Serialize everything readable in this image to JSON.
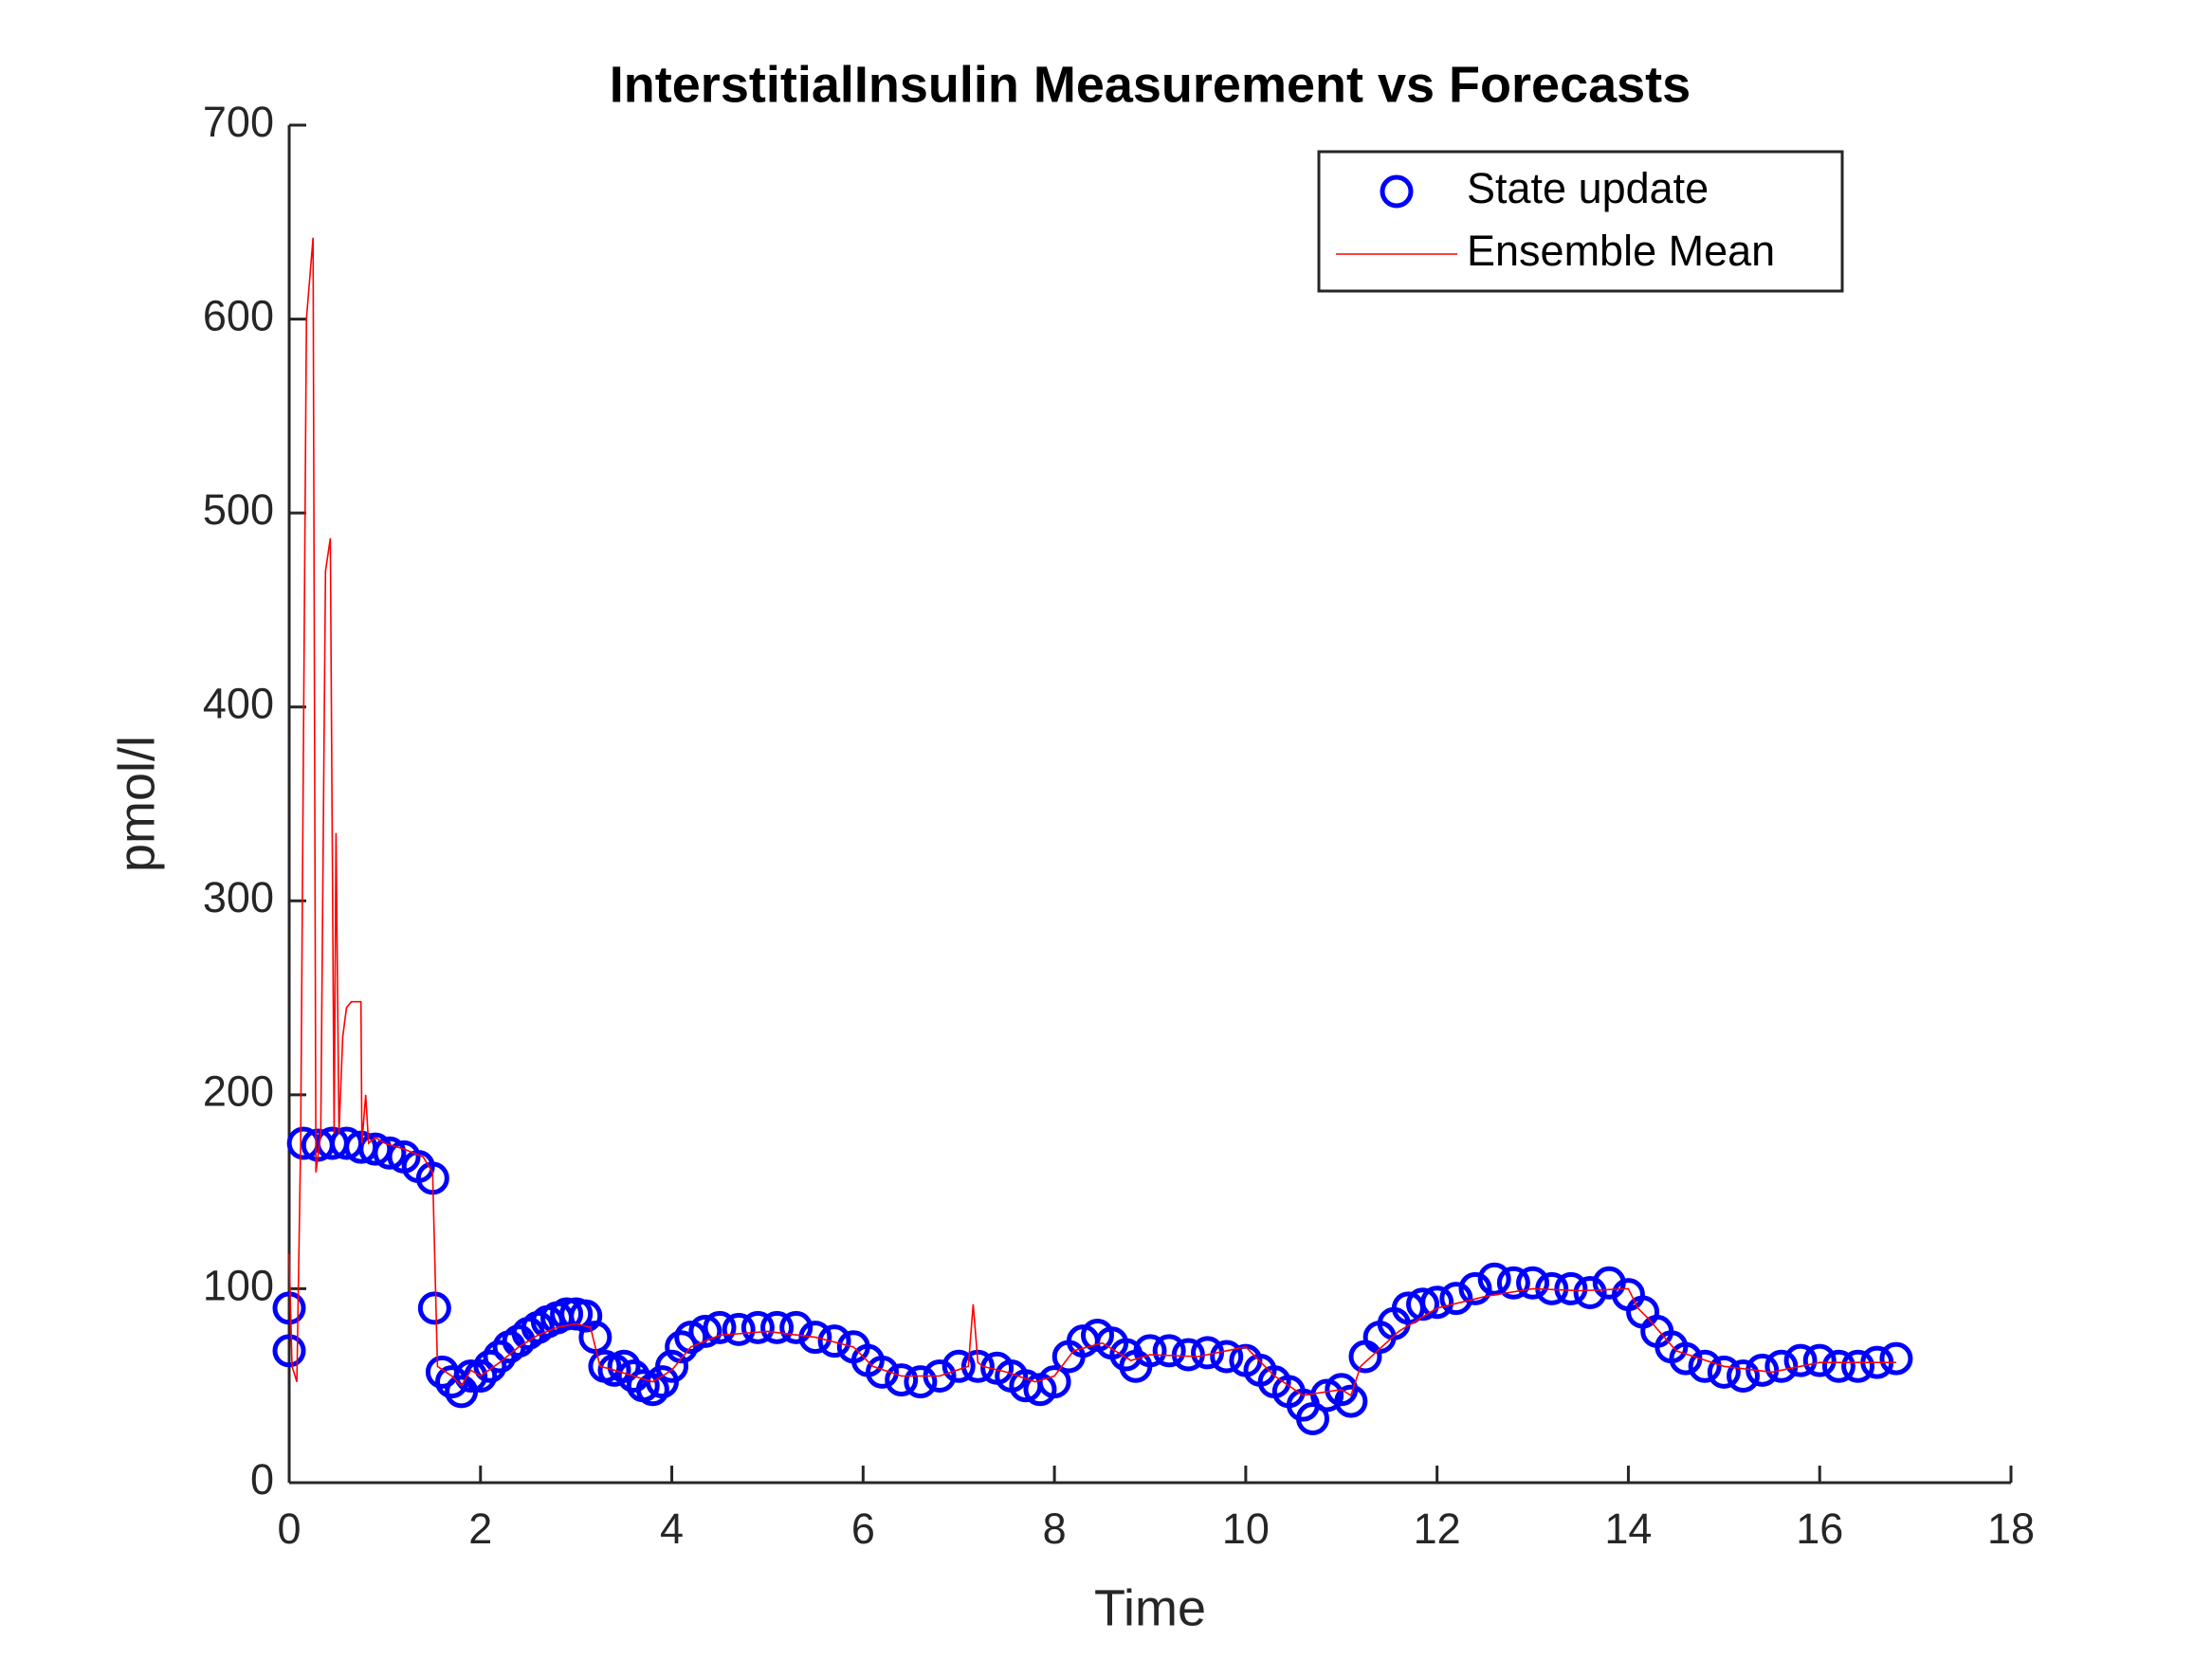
{
  "chart_data": {
    "type": "scatter_line",
    "title": "InterstitialInsulin Measurement vs Forecasts",
    "xlabel": "Time",
    "ylabel": "pmol/l",
    "xlim": [
      0,
      18
    ],
    "ylim": [
      0,
      700
    ],
    "xticks": [
      0,
      2,
      4,
      6,
      8,
      10,
      12,
      14,
      16,
      18
    ],
    "yticks": [
      0,
      100,
      200,
      300,
      400,
      500,
      600,
      700
    ],
    "legend": "upper right",
    "series": [
      {
        "name": "State update",
        "color": "#0000ff",
        "x": [
          0,
          0,
          0.15,
          0.3,
          0.45,
          0.6,
          0.75,
          0.9,
          1.05,
          1.2,
          1.35,
          1.5,
          1.52,
          1.6,
          1.7,
          1.8,
          1.9,
          2.0,
          2.1,
          2.2,
          2.3,
          2.4,
          2.5,
          2.6,
          2.7,
          2.8,
          2.9,
          3.0,
          3.1,
          3.2,
          3.3,
          3.4,
          3.5,
          3.6,
          3.7,
          3.8,
          3.9,
          4.0,
          4.1,
          4.2,
          4.35,
          4.5,
          4.7,
          4.9,
          5.1,
          5.3,
          5.5,
          5.7,
          5.9,
          6.05,
          6.2,
          6.4,
          6.6,
          6.8,
          7.0,
          7.2,
          7.4,
          7.55,
          7.7,
          7.85,
          8.0,
          8.15,
          8.3,
          8.45,
          8.6,
          8.75,
          8.85,
          9.0,
          9.2,
          9.4,
          9.6,
          9.8,
          10.0,
          10.15,
          10.3,
          10.45,
          10.6,
          10.7,
          10.85,
          11.0,
          11.1,
          11.25,
          11.4,
          11.55,
          11.7,
          11.85,
          12.0,
          12.2,
          12.4,
          12.6,
          12.8,
          13.0,
          13.2,
          13.4,
          13.6,
          13.8,
          14.0,
          14.15,
          14.3,
          14.45,
          14.6,
          14.8,
          15.0,
          15.2,
          15.4,
          15.6,
          15.8,
          16.0,
          16.2,
          16.4,
          16.6,
          16.8
        ],
        "values": [
          90,
          68,
          175,
          174,
          175,
          175,
          173,
          172,
          170,
          168,
          163,
          157,
          90,
          57,
          52,
          47,
          55,
          55,
          60,
          65,
          70,
          73,
          77,
          80,
          83,
          85,
          87,
          87,
          86,
          75,
          60,
          58,
          60,
          55,
          50,
          48,
          52,
          60,
          70,
          75,
          78,
          80,
          79,
          80,
          80,
          80,
          75,
          73,
          70,
          63,
          57,
          53,
          52,
          55,
          60,
          60,
          59,
          55,
          50,
          48,
          52,
          65,
          73,
          76,
          72,
          66,
          60,
          68,
          68,
          66,
          67,
          65,
          63,
          58,
          52,
          47,
          40,
          33,
          45,
          48,
          42,
          65,
          75,
          82,
          90,
          92,
          93,
          95,
          100,
          105,
          103,
          103,
          100,
          100,
          98,
          103,
          97,
          88,
          78,
          70,
          64,
          60,
          57,
          55,
          58,
          60,
          63,
          63,
          60,
          60,
          62,
          64
        ]
      },
      {
        "name": "Ensemble Mean",
        "color": "#ff0000",
        "x": [
          0,
          0.03,
          0.08,
          0.12,
          0.18,
          0.25,
          0.28,
          0.33,
          0.38,
          0.43,
          0.47,
          0.49,
          0.52,
          0.56,
          0.6,
          0.65,
          0.75,
          0.76,
          0.8,
          0.83,
          0.9,
          1.0,
          1.2,
          1.4,
          1.5,
          1.55,
          1.7,
          1.8,
          1.9,
          2.0,
          2.2,
          2.4,
          2.6,
          2.8,
          3.0,
          3.15,
          3.25,
          3.4,
          3.6,
          3.8,
          4.0,
          4.2,
          4.5,
          5.0,
          5.5,
          5.9,
          6.1,
          6.4,
          6.8,
          7.1,
          7.15,
          7.2,
          7.25,
          7.5,
          7.8,
          8.0,
          8.2,
          8.5,
          8.8,
          9.0,
          9.5,
          10.0,
          10.3,
          10.6,
          11.0,
          11.1,
          11.2,
          11.6,
          12.0,
          12.5,
          13.0,
          13.5,
          14.0,
          14.1,
          14.2,
          14.5,
          15.0,
          15.5,
          16.0,
          16.5,
          16.8
        ],
        "values": [
          118,
          60,
          52,
          175,
          600,
          642,
          160,
          180,
          470,
          487,
          180,
          335,
          180,
          230,
          245,
          248,
          248,
          175,
          200,
          175,
          178,
          175,
          172,
          168,
          160,
          60,
          55,
          50,
          58,
          55,
          62,
          70,
          76,
          80,
          82,
          80,
          60,
          58,
          55,
          52,
          58,
          70,
          76,
          78,
          75,
          70,
          60,
          55,
          55,
          60,
          92,
          62,
          60,
          57,
          52,
          55,
          68,
          72,
          63,
          66,
          65,
          70,
          55,
          45,
          48,
          45,
          60,
          78,
          90,
          96,
          100,
          99,
          100,
          90,
          85,
          68,
          60,
          57,
          62,
          62,
          62
        ]
      }
    ]
  }
}
